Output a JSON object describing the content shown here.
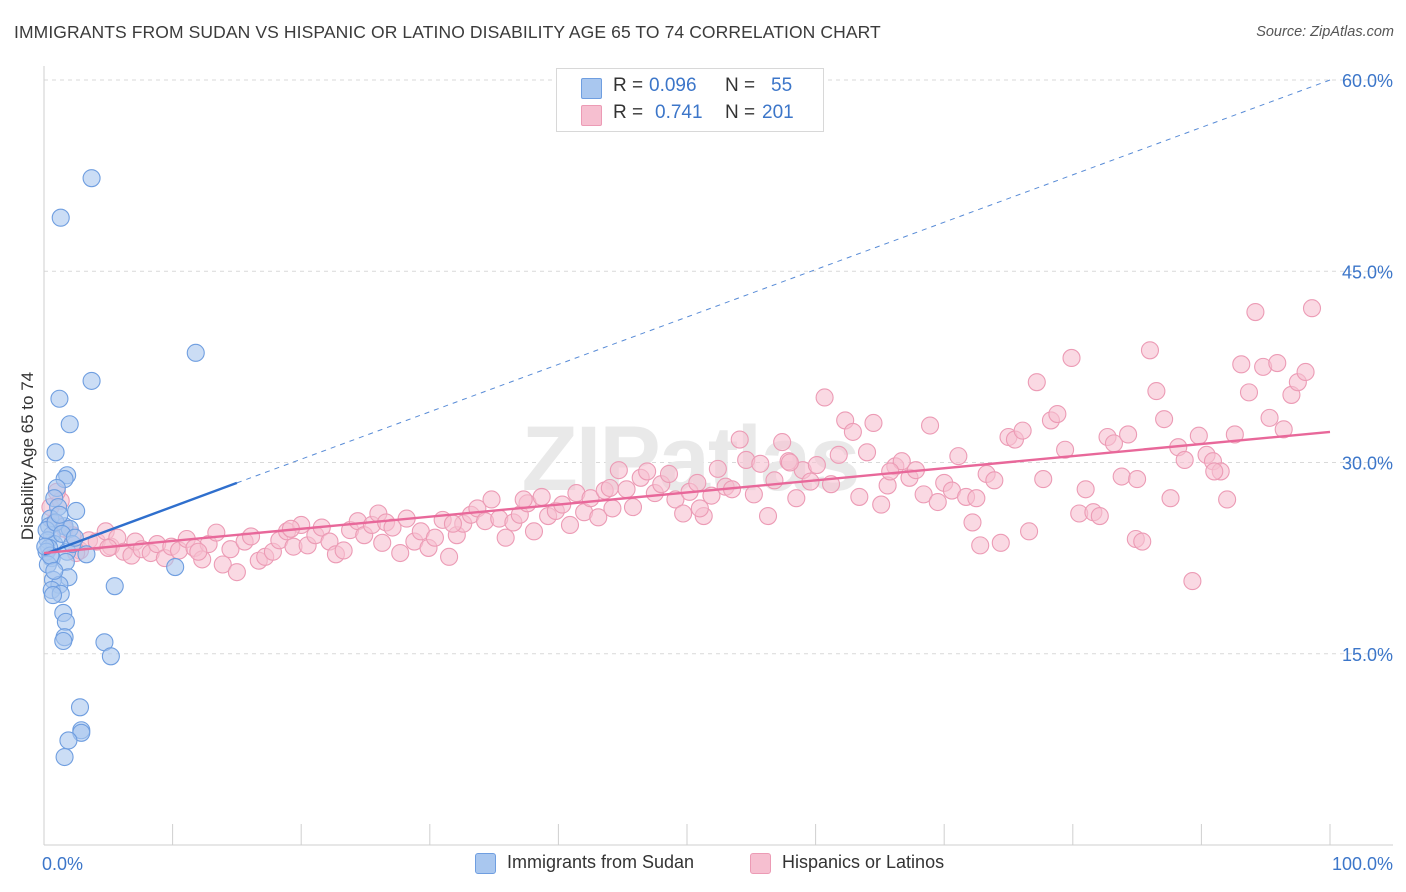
{
  "title": "IMMIGRANTS FROM SUDAN VS HISPANIC OR LATINO DISABILITY AGE 65 TO 74 CORRELATION CHART",
  "source": "Source: ZipAtlas.com",
  "watermark": "ZIPatlas",
  "legend_top": {
    "rows": [
      {
        "r_label": "R =",
        "r_value": "0.096",
        "n_label": "N =",
        "n_value": "55"
      },
      {
        "r_label": "R =",
        "r_value": "0.741",
        "n_label": "N =",
        "n_value": "201"
      }
    ]
  },
  "legend_bottom": [
    "Immigrants from Sudan",
    "Hispanics or Latinos"
  ],
  "colors": {
    "blue_fill": "#a9c7ef",
    "blue_stroke": "#6f9ee0",
    "blue_line": "#2f6fcd",
    "pink_fill": "#f6bfd0",
    "pink_stroke": "#ec9bb5",
    "pink_line": "#e8689a",
    "axis_label": "#3c76c9",
    "grid": "#d9d9d9"
  },
  "chart_data": {
    "type": "scatter",
    "title": "IMMIGRANTS FROM SUDAN VS HISPANIC OR LATINO DISABILITY AGE 65 TO 74 CORRELATION CHART",
    "xlabel": "",
    "ylabel": "Disability Age 65 to 74",
    "xlim": [
      0,
      100
    ],
    "ylim": [
      0,
      60
    ],
    "x_tick_labels": [
      "0.0%",
      "100.0%"
    ],
    "y_ticks": [
      15,
      30,
      45,
      60
    ],
    "y_tick_labels": [
      "15.0%",
      "30.0%",
      "45.0%",
      "60.0%"
    ],
    "series": [
      {
        "name": "Immigrants from Sudan",
        "color": "blue",
        "R": 0.096,
        "N": 55,
        "trend_solid": [
          [
            0,
            22.8
          ],
          [
            15,
            28.4
          ]
        ],
        "trend_dashed": [
          [
            15,
            28.4
          ],
          [
            100,
            60
          ]
        ],
        "points": [
          [
            3.7,
            52.3
          ],
          [
            1.3,
            49.2
          ],
          [
            11.8,
            38.6
          ],
          [
            3.7,
            36.4
          ],
          [
            1.2,
            35.0
          ],
          [
            2.0,
            33.0
          ],
          [
            0.9,
            30.8
          ],
          [
            1.8,
            29.0
          ],
          [
            1.6,
            28.7
          ],
          [
            1.0,
            28.0
          ],
          [
            0.8,
            27.2
          ],
          [
            1.1,
            26.5
          ],
          [
            0.5,
            25.6
          ],
          [
            2.5,
            26.2
          ],
          [
            0.4,
            25.0
          ],
          [
            1.6,
            25.0
          ],
          [
            2.0,
            24.8
          ],
          [
            0.6,
            24.3
          ],
          [
            0.3,
            23.9
          ],
          [
            0.8,
            23.6
          ],
          [
            0.4,
            23.3
          ],
          [
            0.2,
            23.0
          ],
          [
            1.8,
            23.0
          ],
          [
            0.6,
            22.5
          ],
          [
            1.7,
            22.2
          ],
          [
            0.3,
            22.0
          ],
          [
            3.3,
            22.8
          ],
          [
            10.2,
            21.8
          ],
          [
            1.9,
            21.0
          ],
          [
            0.7,
            20.8
          ],
          [
            1.2,
            20.4
          ],
          [
            0.6,
            20.0
          ],
          [
            5.5,
            20.3
          ],
          [
            1.3,
            19.7
          ],
          [
            0.7,
            19.6
          ],
          [
            1.5,
            18.2
          ],
          [
            1.7,
            17.5
          ],
          [
            1.6,
            16.3
          ],
          [
            1.5,
            16.0
          ],
          [
            4.7,
            15.9
          ],
          [
            5.2,
            14.8
          ],
          [
            2.8,
            10.8
          ],
          [
            2.9,
            9.0
          ],
          [
            2.9,
            8.8
          ],
          [
            1.9,
            8.2
          ],
          [
            1.6,
            6.9
          ],
          [
            0.2,
            24.7
          ],
          [
            0.9,
            25.3
          ],
          [
            1.4,
            24.4
          ],
          [
            0.5,
            22.7
          ],
          [
            2.2,
            23.6
          ],
          [
            0.1,
            23.4
          ],
          [
            1.2,
            25.9
          ],
          [
            0.8,
            21.5
          ],
          [
            2.4,
            24.1
          ]
        ]
      },
      {
        "name": "Hispanics or Latinos",
        "color": "pink",
        "R": 0.741,
        "N": 201,
        "trend_solid": [
          [
            0,
            22.9
          ],
          [
            100,
            32.4
          ]
        ],
        "points": [
          [
            0.5,
            26.5
          ],
          [
            0.8,
            25.3
          ],
          [
            1.3,
            27.0
          ],
          [
            1.6,
            24.8
          ],
          [
            2.2,
            24.3
          ],
          [
            2.8,
            23.1
          ],
          [
            3.5,
            23.9
          ],
          [
            4.1,
            23.8
          ],
          [
            4.8,
            24.6
          ],
          [
            5.2,
            23.4
          ],
          [
            5.7,
            24.1
          ],
          [
            6.2,
            23.0
          ],
          [
            6.8,
            22.7
          ],
          [
            7.1,
            23.8
          ],
          [
            7.6,
            23.2
          ],
          [
            8.3,
            22.9
          ],
          [
            8.8,
            23.6
          ],
          [
            9.4,
            22.5
          ],
          [
            9.9,
            23.4
          ],
          [
            10.5,
            23.1
          ],
          [
            11.1,
            24.0
          ],
          [
            11.7,
            23.3
          ],
          [
            12.3,
            22.4
          ],
          [
            12.8,
            23.6
          ],
          [
            13.4,
            24.5
          ],
          [
            13.9,
            22.0
          ],
          [
            14.5,
            23.2
          ],
          [
            15.0,
            21.4
          ],
          [
            15.6,
            23.8
          ],
          [
            16.1,
            24.2
          ],
          [
            16.7,
            22.3
          ],
          [
            17.2,
            22.6
          ],
          [
            17.8,
            23.0
          ],
          [
            18.3,
            23.9
          ],
          [
            18.9,
            24.6
          ],
          [
            19.4,
            23.4
          ],
          [
            20.0,
            25.1
          ],
          [
            20.5,
            23.5
          ],
          [
            21.1,
            24.3
          ],
          [
            21.6,
            24.9
          ],
          [
            22.2,
            23.8
          ],
          [
            22.7,
            22.8
          ],
          [
            23.3,
            23.1
          ],
          [
            23.8,
            24.7
          ],
          [
            24.4,
            25.4
          ],
          [
            24.9,
            24.3
          ],
          [
            25.5,
            25.1
          ],
          [
            26.0,
            26.0
          ],
          [
            26.6,
            25.3
          ],
          [
            27.1,
            24.9
          ],
          [
            27.7,
            22.9
          ],
          [
            28.2,
            25.6
          ],
          [
            28.8,
            23.8
          ],
          [
            29.3,
            24.6
          ],
          [
            29.9,
            23.3
          ],
          [
            30.4,
            24.1
          ],
          [
            31.0,
            25.5
          ],
          [
            31.5,
            22.6
          ],
          [
            32.1,
            24.3
          ],
          [
            32.6,
            25.2
          ],
          [
            33.2,
            25.9
          ],
          [
            33.7,
            26.4
          ],
          [
            34.3,
            25.4
          ],
          [
            34.8,
            27.1
          ],
          [
            35.4,
            25.6
          ],
          [
            35.9,
            24.1
          ],
          [
            36.5,
            25.3
          ],
          [
            37.0,
            25.9
          ],
          [
            37.6,
            26.8
          ],
          [
            38.1,
            24.6
          ],
          [
            38.7,
            27.3
          ],
          [
            39.2,
            25.8
          ],
          [
            39.8,
            26.2
          ],
          [
            40.3,
            26.7
          ],
          [
            40.9,
            25.1
          ],
          [
            41.4,
            27.6
          ],
          [
            42.0,
            26.1
          ],
          [
            42.5,
            27.2
          ],
          [
            43.1,
            25.7
          ],
          [
            43.6,
            27.8
          ],
          [
            44.2,
            26.4
          ],
          [
            44.7,
            29.4
          ],
          [
            45.3,
            27.9
          ],
          [
            45.8,
            26.5
          ],
          [
            46.4,
            28.8
          ],
          [
            46.9,
            29.3
          ],
          [
            47.5,
            27.6
          ],
          [
            48.0,
            28.3
          ],
          [
            48.6,
            29.1
          ],
          [
            49.1,
            27.1
          ],
          [
            49.7,
            26.0
          ],
          [
            50.2,
            27.7
          ],
          [
            50.8,
            28.4
          ],
          [
            51.3,
            25.8
          ],
          [
            51.9,
            27.4
          ],
          [
            52.4,
            29.5
          ],
          [
            53.0,
            28.1
          ],
          [
            53.5,
            27.9
          ],
          [
            54.1,
            31.8
          ],
          [
            54.6,
            30.2
          ],
          [
            55.2,
            27.5
          ],
          [
            55.7,
            29.9
          ],
          [
            56.3,
            25.8
          ],
          [
            56.8,
            28.6
          ],
          [
            57.4,
            31.6
          ],
          [
            57.9,
            30.1
          ],
          [
            58.5,
            27.2
          ],
          [
            59.0,
            29.4
          ],
          [
            59.6,
            28.5
          ],
          [
            60.1,
            29.8
          ],
          [
            60.7,
            35.1
          ],
          [
            61.2,
            28.3
          ],
          [
            61.8,
            30.6
          ],
          [
            62.3,
            33.3
          ],
          [
            62.9,
            32.4
          ],
          [
            63.4,
            27.3
          ],
          [
            64.0,
            30.8
          ],
          [
            64.5,
            33.1
          ],
          [
            65.1,
            26.7
          ],
          [
            65.6,
            28.2
          ],
          [
            66.2,
            29.7
          ],
          [
            66.7,
            30.1
          ],
          [
            67.3,
            28.8
          ],
          [
            67.8,
            29.4
          ],
          [
            68.4,
            27.5
          ],
          [
            68.9,
            32.9
          ],
          [
            69.5,
            26.9
          ],
          [
            70.0,
            28.4
          ],
          [
            70.6,
            27.8
          ],
          [
            71.1,
            30.5
          ],
          [
            71.7,
            27.3
          ],
          [
            72.2,
            25.3
          ],
          [
            72.8,
            23.5
          ],
          [
            73.3,
            29.1
          ],
          [
            73.9,
            28.6
          ],
          [
            74.4,
            23.7
          ],
          [
            75.0,
            32.0
          ],
          [
            75.5,
            31.8
          ],
          [
            76.1,
            32.5
          ],
          [
            76.6,
            24.6
          ],
          [
            77.2,
            36.3
          ],
          [
            77.7,
            28.7
          ],
          [
            78.3,
            33.3
          ],
          [
            78.8,
            33.8
          ],
          [
            79.4,
            31.0
          ],
          [
            79.9,
            38.2
          ],
          [
            80.5,
            26.0
          ],
          [
            81.0,
            27.9
          ],
          [
            81.6,
            26.1
          ],
          [
            82.1,
            25.8
          ],
          [
            82.7,
            32.0
          ],
          [
            83.2,
            31.5
          ],
          [
            83.8,
            28.9
          ],
          [
            84.3,
            32.2
          ],
          [
            84.9,
            24.0
          ],
          [
            85.4,
            23.8
          ],
          [
            86.0,
            38.8
          ],
          [
            86.5,
            35.6
          ],
          [
            87.1,
            33.4
          ],
          [
            87.6,
            27.2
          ],
          [
            88.2,
            31.2
          ],
          [
            88.7,
            30.2
          ],
          [
            89.3,
            20.7
          ],
          [
            89.8,
            32.1
          ],
          [
            90.4,
            30.6
          ],
          [
            90.9,
            30.1
          ],
          [
            91.5,
            29.3
          ],
          [
            92.0,
            27.1
          ],
          [
            92.6,
            32.2
          ],
          [
            93.1,
            37.7
          ],
          [
            93.7,
            35.5
          ],
          [
            94.2,
            41.8
          ],
          [
            94.8,
            37.5
          ],
          [
            95.3,
            33.5
          ],
          [
            95.9,
            37.8
          ],
          [
            96.4,
            32.6
          ],
          [
            97.0,
            35.3
          ],
          [
            97.5,
            36.3
          ],
          [
            98.1,
            37.1
          ],
          [
            98.6,
            42.1
          ],
          [
            91.0,
            29.3
          ],
          [
            85.0,
            28.7
          ],
          [
            72.5,
            27.2
          ],
          [
            65.8,
            29.3
          ],
          [
            58.0,
            30.0
          ],
          [
            51.0,
            26.4
          ],
          [
            44.0,
            28.0
          ],
          [
            37.3,
            27.1
          ],
          [
            31.8,
            25.2
          ],
          [
            26.3,
            23.7
          ],
          [
            19.2,
            24.8
          ],
          [
            12.0,
            23.0
          ],
          [
            5.0,
            23.3
          ],
          [
            2.5,
            22.9
          ],
          [
            1.0,
            27.7
          ]
        ]
      }
    ]
  }
}
